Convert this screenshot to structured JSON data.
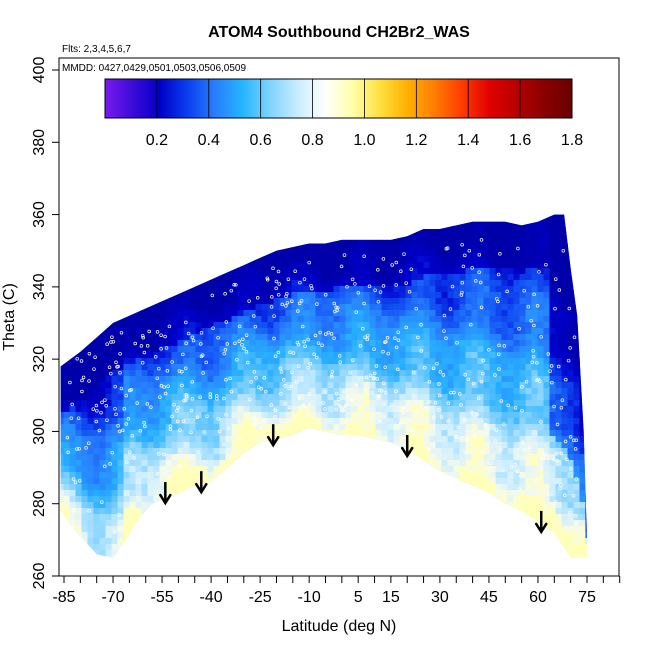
{
  "chart_data": {
    "type": "heatmap",
    "title": "ATOM4 Southbound CH2Br2_WAS",
    "flights_note": "Flts: 2,3,4,5,6,7",
    "dates_note": "MMDD: 0427,0429,0501,0503,0506,0509",
    "xlabel": "Latitude (deg N)",
    "ylabel": "Theta (C)",
    "xlim": [
      -88,
      84
    ],
    "ylim": [
      260,
      405
    ],
    "x_ticks": [
      -85,
      -70,
      -55,
      -40,
      -25,
      -10,
      5,
      15,
      30,
      45,
      60,
      75
    ],
    "y_ticks": [
      260,
      280,
      300,
      320,
      340,
      360,
      380,
      400
    ],
    "colorbar": {
      "range": [
        0,
        1.8
      ],
      "ticks": [
        "0.2",
        "0.4",
        "0.6",
        "0.8",
        "1.0",
        "1.2",
        "1.4",
        "1.6",
        "1.8"
      ],
      "colors": [
        "#7a1bef",
        "#3b0bd9",
        "#0000c8",
        "#0a3ef0",
        "#2a7cff",
        "#23b5ff",
        "#7fd3ff",
        "#c8ecff",
        "#ffffff",
        "#ffffaa",
        "#ffe040",
        "#ffb000",
        "#ff7c00",
        "#ff3a00",
        "#e00000",
        "#b50000",
        "#8a0000",
        "#6a0000"
      ]
    },
    "upper_boundary": [
      [
        -86,
        318
      ],
      [
        -80,
        322
      ],
      [
        -75,
        326
      ],
      [
        -70,
        330
      ],
      [
        -65,
        332
      ],
      [
        -60,
        334
      ],
      [
        -55,
        336
      ],
      [
        -50,
        338
      ],
      [
        -45,
        340
      ],
      [
        -40,
        342
      ],
      [
        -35,
        344
      ],
      [
        -30,
        346
      ],
      [
        -25,
        348
      ],
      [
        -20,
        350
      ],
      [
        -15,
        351
      ],
      [
        -10,
        352
      ],
      [
        -5,
        352
      ],
      [
        0,
        353
      ],
      [
        5,
        353
      ],
      [
        10,
        353
      ],
      [
        15,
        353
      ],
      [
        20,
        354
      ],
      [
        25,
        356
      ],
      [
        30,
        356
      ],
      [
        35,
        357
      ],
      [
        40,
        358
      ],
      [
        45,
        358
      ],
      [
        50,
        358
      ],
      [
        55,
        357
      ],
      [
        60,
        358
      ],
      [
        65,
        360
      ],
      [
        68,
        360
      ]
    ],
    "lower_boundary": [
      [
        -86,
        278
      ],
      [
        -82,
        273
      ],
      [
        -78,
        269
      ],
      [
        -75,
        266
      ],
      [
        -70,
        265
      ],
      [
        -66,
        270
      ],
      [
        -62,
        276
      ],
      [
        -58,
        280
      ],
      [
        -55,
        281
      ],
      [
        -50,
        283
      ],
      [
        -45,
        285
      ],
      [
        -40,
        286
      ],
      [
        -35,
        290
      ],
      [
        -30,
        294
      ],
      [
        -25,
        297
      ],
      [
        -20,
        298
      ],
      [
        -15,
        299
      ],
      [
        -10,
        301
      ],
      [
        -5,
        300
      ],
      [
        0,
        299
      ],
      [
        5,
        299
      ],
      [
        10,
        298
      ],
      [
        15,
        297
      ],
      [
        20,
        295
      ],
      [
        25,
        292
      ],
      [
        30,
        289
      ],
      [
        35,
        287
      ],
      [
        40,
        285
      ],
      [
        45,
        283
      ],
      [
        50,
        280
      ],
      [
        55,
        278
      ],
      [
        60,
        275
      ],
      [
        65,
        272
      ],
      [
        70,
        265
      ],
      [
        73,
        265
      ]
    ],
    "right_edge_top": [
      [
        68,
        360
      ],
      [
        70,
        345
      ],
      [
        72,
        332
      ],
      [
        74,
        300
      ],
      [
        75,
        270
      ],
      [
        75,
        265
      ]
    ],
    "arrows": [
      {
        "lat": -54,
        "theta": 286
      },
      {
        "lat": -43,
        "theta": 289
      },
      {
        "lat": -21,
        "theta": 302
      },
      {
        "lat": 20,
        "theta": 299
      },
      {
        "lat": 61,
        "theta": 278
      }
    ]
  }
}
